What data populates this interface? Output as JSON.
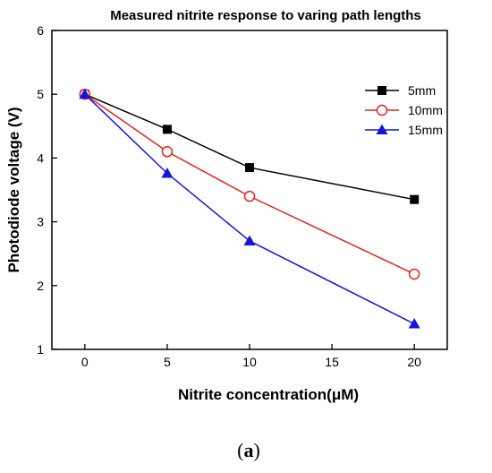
{
  "caption_prefix": "(",
  "caption_letter": "a",
  "caption_suffix": ")",
  "chart_data": {
    "type": "line",
    "title": "Measured nitrite response to varing path lengths",
    "xlabel": "Nitrite concentration(μM)",
    "ylabel": "Photodiode voltage (V)",
    "xlim": [
      -2,
      22
    ],
    "ylim": [
      1,
      6
    ],
    "xticks": [
      0,
      5,
      10,
      15,
      20
    ],
    "yticks": [
      1,
      2,
      3,
      4,
      5,
      6
    ],
    "grid": false,
    "legend_position": "top-right",
    "series": [
      {
        "name": "5mm",
        "color": "#000000",
        "marker": "filled-square",
        "x": [
          0,
          5,
          10,
          20
        ],
        "y": [
          5.0,
          4.45,
          3.85,
          3.35
        ]
      },
      {
        "name": "10mm",
        "color": "#e8211b",
        "marker": "open-circle",
        "x": [
          0,
          5,
          10,
          20
        ],
        "y": [
          5.0,
          4.1,
          3.4,
          2.18
        ]
      },
      {
        "name": "15mm",
        "color": "#1515e0",
        "marker": "filled-triangle",
        "x": [
          0,
          5,
          10,
          20
        ],
        "y": [
          5.0,
          3.76,
          2.7,
          1.4
        ]
      }
    ]
  }
}
